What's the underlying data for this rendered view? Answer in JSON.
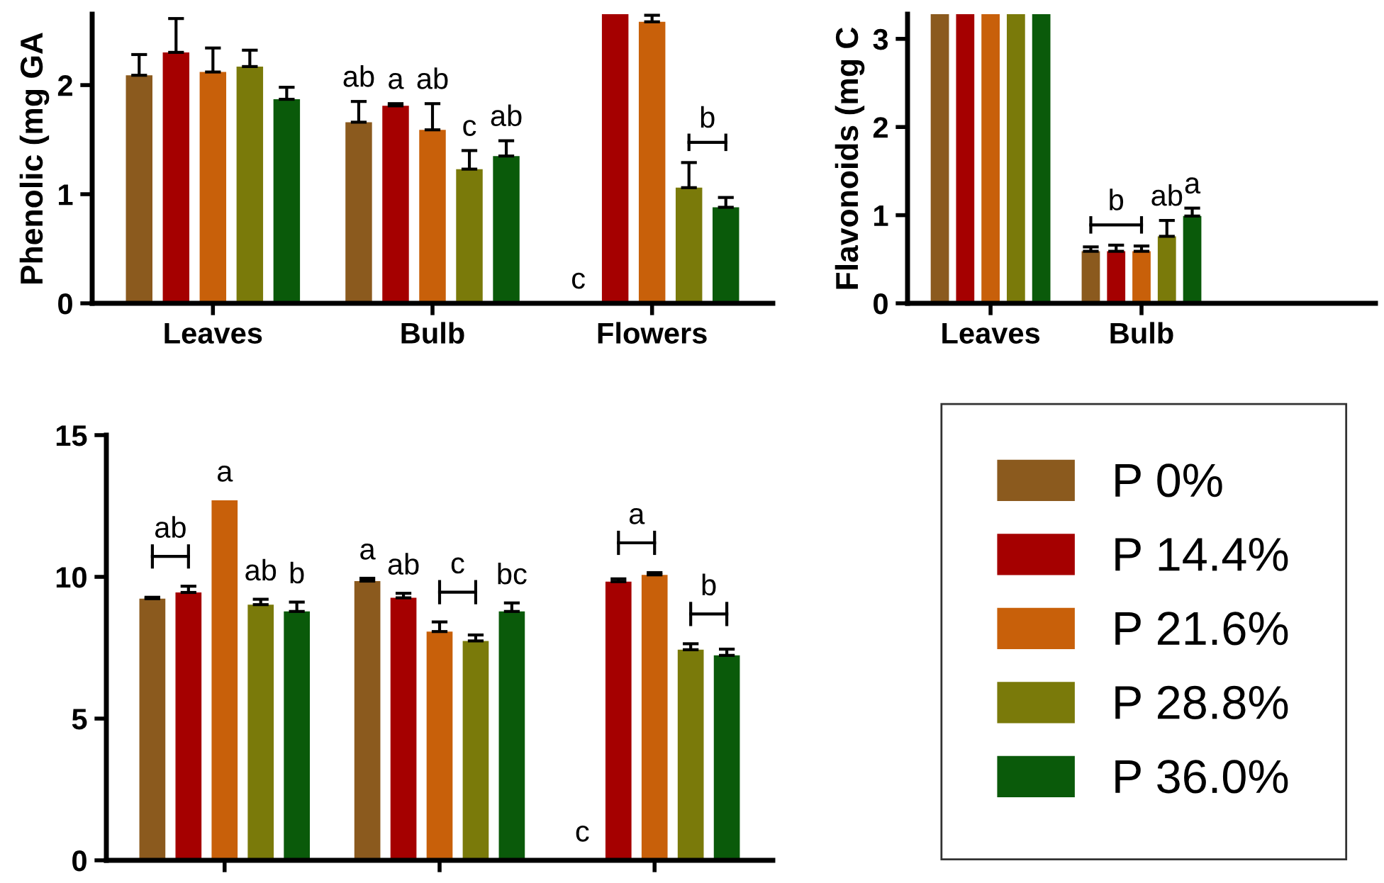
{
  "chart_data": [
    {
      "type": "bar",
      "ylabel": "Phenolic (mg GA",
      "categories": [
        "Leaves",
        "Bulb",
        "Flowers"
      ],
      "ylim": [
        0,
        2.65
      ],
      "yticks": [
        0,
        1,
        2
      ],
      "grid": false,
      "legend": "bottom right",
      "series": [
        {
          "name": "P 0%",
          "color": "#8b5a1e",
          "values": [
            2.09,
            1.66,
            0
          ],
          "errors": [
            [
              2.09,
              2.28
            ],
            [
              1.66,
              1.85
            ],
            null
          ]
        },
        {
          "name": "P 14.4%",
          "color": "#a50000",
          "values": [
            2.3,
            1.81,
            2.65
          ],
          "errors": [
            [
              2.3,
              2.61
            ],
            [
              1.81,
              1.83
            ],
            null
          ]
        },
        {
          "name": "P 21.6%",
          "color": "#c8600a",
          "values": [
            2.12,
            1.59,
            2.58
          ],
          "errors": [
            [
              2.12,
              2.34
            ],
            [
              1.59,
              1.83
            ],
            [
              2.58,
              2.64
            ]
          ]
        },
        {
          "name": "P 28.8%",
          "color": "#7a7a0a",
          "values": [
            2.17,
            1.23,
            1.06
          ],
          "errors": [
            [
              2.17,
              2.32
            ],
            [
              1.23,
              1.4
            ],
            [
              1.06,
              1.29
            ]
          ]
        },
        {
          "name": "P 36.0%",
          "color": "#0a5a0a",
          "values": [
            1.87,
            1.35,
            0.88
          ],
          "errors": [
            [
              1.87,
              1.98
            ],
            [
              1.35,
              1.49
            ],
            [
              0.88,
              0.97
            ]
          ]
        }
      ],
      "annotations": [
        "ab",
        "a",
        "ab",
        "c",
        "ab",
        "c",
        "b"
      ]
    },
    {
      "type": "bar",
      "ylabel": "Flavonoids (mg C",
      "categories": [
        "Leaves",
        "Bulb"
      ],
      "ylim": [
        0,
        3.28
      ],
      "yticks": [
        0,
        1,
        2,
        3
      ],
      "grid": false,
      "series": [
        {
          "color": "#8b5a1e",
          "values": [
            3.28,
            0.59
          ],
          "errors": [
            null,
            [
              0.59,
              0.64
            ]
          ]
        },
        {
          "color": "#a50000",
          "values": [
            3.28,
            0.59
          ],
          "errors": [
            null,
            [
              0.59,
              0.66
            ]
          ]
        },
        {
          "color": "#c8600a",
          "values": [
            3.28,
            0.59
          ],
          "errors": [
            null,
            [
              0.59,
              0.65
            ]
          ]
        },
        {
          "color": "#7a7a0a",
          "values": [
            3.28,
            0.76
          ],
          "errors": [
            null,
            [
              0.76,
              0.94
            ]
          ]
        },
        {
          "color": "#0a5a0a",
          "values": [
            3.28,
            0.99
          ],
          "errors": [
            null,
            [
              0.99,
              1.08
            ]
          ]
        }
      ],
      "annotations": [
        "b",
        "ab",
        "a"
      ]
    },
    {
      "type": "bar",
      "categories": [
        null,
        null,
        null
      ],
      "ylim": [
        0,
        15
      ],
      "yticks": [
        0,
        5,
        10,
        15
      ],
      "grid": false,
      "tick_labels": "y",
      "series": [
        {
          "color": "#8b5a1e",
          "values": [
            9.23,
            9.85,
            0
          ],
          "errors": [
            [
              9.23,
              9.28
            ],
            [
              9.85,
              9.95
            ],
            null
          ]
        },
        {
          "color": "#a50000",
          "values": [
            9.45,
            9.26,
            9.83
          ],
          "errors": [
            [
              9.45,
              9.67
            ],
            [
              9.26,
              9.42
            ],
            [
              9.83,
              9.93
            ]
          ]
        },
        {
          "color": "#c8600a",
          "values": [
            12.7,
            8.07,
            10.07
          ],
          "errors": [
            null,
            [
              8.07,
              8.41
            ],
            [
              10.07,
              10.15
            ]
          ]
        },
        {
          "color": "#7a7a0a",
          "values": [
            9.02,
            7.74,
            7.43
          ],
          "errors": [
            [
              9.02,
              9.21
            ],
            [
              7.74,
              7.95
            ],
            [
              7.43,
              7.64
            ]
          ]
        },
        {
          "color": "#0a5a0a",
          "values": [
            8.78,
            8.78,
            7.23
          ],
          "errors": [
            [
              8.78,
              9.11
            ],
            [
              8.78,
              9.08
            ],
            [
              7.23,
              7.45
            ]
          ]
        }
      ],
      "annotations": [
        "ab",
        "a",
        "ab",
        "b",
        "a",
        "ab",
        "c",
        "bc",
        "c",
        "a",
        "b"
      ]
    }
  ]
}
